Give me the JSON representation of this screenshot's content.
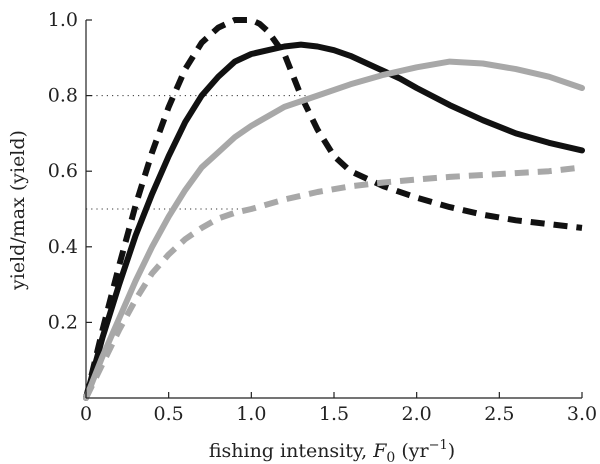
{
  "chart_data": {
    "type": "line",
    "title": "",
    "xlabel": {
      "prefix": "fishing intensity, ",
      "var": "F",
      "sub": "0",
      "unit_open": " (yr",
      "sup": "−1",
      "unit_close": ")"
    },
    "ylabel": "yield/max (yield)",
    "xlim": [
      0,
      3.0
    ],
    "ylim": [
      0,
      1.0
    ],
    "xticks": [
      0,
      0.5,
      1.0,
      1.5,
      2.0,
      2.5,
      3.0
    ],
    "xtick_labels": [
      "0",
      "0.5",
      "1.0",
      "1.5",
      "2.0",
      "2.5",
      "3.0"
    ],
    "yticks": [
      0.2,
      0.4,
      0.6,
      0.8,
      1.0
    ],
    "ytick_labels": [
      "0.2",
      "0.4",
      "0.6",
      "0.8",
      "1.0"
    ],
    "grid": false,
    "reference_lines": [
      {
        "y": 0.8,
        "x_end": 1.35,
        "style": "dotted"
      },
      {
        "y": 0.5,
        "x_end": 1.0,
        "style": "dotted"
      }
    ],
    "series": [
      {
        "color": "#111111",
        "dash": "solid",
        "x": [
          0,
          0.1,
          0.2,
          0.3,
          0.4,
          0.5,
          0.6,
          0.7,
          0.8,
          0.9,
          1.0,
          1.1,
          1.2,
          1.3,
          1.4,
          1.5,
          1.6,
          1.7,
          1.8,
          1.9,
          2.0,
          2.2,
          2.4,
          2.6,
          2.8,
          3.0
        ],
        "y": [
          0,
          0.16,
          0.3,
          0.43,
          0.54,
          0.64,
          0.73,
          0.8,
          0.85,
          0.89,
          0.91,
          0.92,
          0.93,
          0.935,
          0.93,
          0.92,
          0.905,
          0.885,
          0.865,
          0.845,
          0.82,
          0.775,
          0.735,
          0.7,
          0.675,
          0.655
        ]
      },
      {
        "color": "#111111",
        "dash": "dashed",
        "x": [
          0,
          0.1,
          0.2,
          0.3,
          0.4,
          0.5,
          0.6,
          0.7,
          0.8,
          0.9,
          0.95,
          1.0,
          1.05,
          1.1,
          1.15,
          1.2,
          1.3,
          1.4,
          1.5,
          1.6,
          1.8,
          2.0,
          2.2,
          2.4,
          2.6,
          2.8,
          3.0
        ],
        "y": [
          0,
          0.18,
          0.35,
          0.51,
          0.65,
          0.77,
          0.87,
          0.94,
          0.98,
          1.0,
          1.0,
          1.0,
          0.99,
          0.97,
          0.94,
          0.91,
          0.8,
          0.71,
          0.64,
          0.6,
          0.56,
          0.53,
          0.505,
          0.485,
          0.47,
          0.46,
          0.45
        ]
      },
      {
        "color": "#a8a8a8",
        "dash": "solid",
        "x": [
          0,
          0.1,
          0.2,
          0.3,
          0.4,
          0.5,
          0.6,
          0.7,
          0.8,
          0.9,
          1.0,
          1.2,
          1.4,
          1.6,
          1.8,
          2.0,
          2.2,
          2.4,
          2.6,
          2.8,
          3.0
        ],
        "y": [
          0,
          0.11,
          0.21,
          0.31,
          0.4,
          0.48,
          0.55,
          0.61,
          0.65,
          0.69,
          0.72,
          0.77,
          0.8,
          0.83,
          0.855,
          0.875,
          0.89,
          0.885,
          0.87,
          0.85,
          0.82
        ]
      },
      {
        "color": "#a8a8a8",
        "dash": "dashed",
        "x": [
          0,
          0.1,
          0.2,
          0.3,
          0.4,
          0.5,
          0.6,
          0.7,
          0.8,
          0.9,
          1.0,
          1.2,
          1.4,
          1.6,
          1.8,
          2.0,
          2.2,
          2.4,
          2.6,
          2.8,
          3.0
        ],
        "y": [
          0,
          0.09,
          0.18,
          0.26,
          0.33,
          0.38,
          0.42,
          0.45,
          0.475,
          0.49,
          0.5,
          0.525,
          0.545,
          0.56,
          0.57,
          0.578,
          0.585,
          0.59,
          0.595,
          0.6,
          0.61
        ]
      }
    ]
  }
}
